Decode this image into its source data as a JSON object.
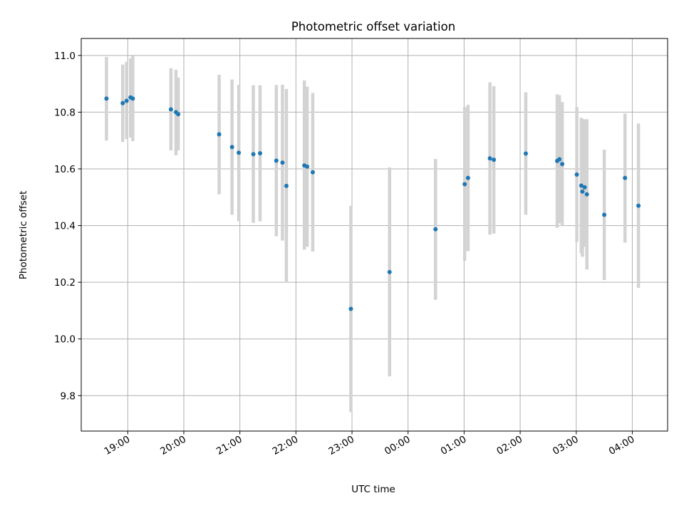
{
  "chart_data": {
    "type": "scatter",
    "title": "Photometric offset variation",
    "xlabel": "UTC time",
    "ylabel": "Photometric offset",
    "x_unit": "time of day (hours, continuing past midnight)",
    "xlim": [
      18.17,
      28.63
    ],
    "ylim": [
      9.675,
      11.06
    ],
    "x_ticks": [
      {
        "value": 19,
        "label": "19:00"
      },
      {
        "value": 20,
        "label": "20:00"
      },
      {
        "value": 21,
        "label": "21:00"
      },
      {
        "value": 22,
        "label": "22:00"
      },
      {
        "value": 23,
        "label": "23:00"
      },
      {
        "value": 24,
        "label": "00:00"
      },
      {
        "value": 25,
        "label": "01:00"
      },
      {
        "value": 26,
        "label": "02:00"
      },
      {
        "value": 27,
        "label": "03:00"
      },
      {
        "value": 28,
        "label": "04:00"
      }
    ],
    "y_ticks": [
      {
        "value": 9.8,
        "label": "9.8"
      },
      {
        "value": 10.0,
        "label": "10.0"
      },
      {
        "value": 10.2,
        "label": "10.2"
      },
      {
        "value": 10.4,
        "label": "10.4"
      },
      {
        "value": 10.6,
        "label": "10.6"
      },
      {
        "value": 10.8,
        "label": "10.8"
      },
      {
        "value": 11.0,
        "label": "11.0"
      }
    ],
    "grid": true,
    "marker_color": "#1f77b4",
    "errorbar_color": "#d3d3d3",
    "points": [
      {
        "x": 18.62,
        "y": 10.848,
        "ylo": 10.7,
        "yhi": 10.995
      },
      {
        "x": 18.91,
        "y": 10.832,
        "ylo": 10.695,
        "yhi": 10.968
      },
      {
        "x": 18.98,
        "y": 10.84,
        "ylo": 10.705,
        "yhi": 10.978
      },
      {
        "x": 19.05,
        "y": 10.852,
        "ylo": 10.71,
        "yhi": 10.99
      },
      {
        "x": 19.09,
        "y": 10.848,
        "ylo": 10.698,
        "yhi": 10.998
      },
      {
        "x": 19.77,
        "y": 10.81,
        "ylo": 10.665,
        "yhi": 10.955
      },
      {
        "x": 19.86,
        "y": 10.8,
        "ylo": 10.648,
        "yhi": 10.95
      },
      {
        "x": 19.9,
        "y": 10.793,
        "ylo": 10.665,
        "yhi": 10.922
      },
      {
        "x": 20.63,
        "y": 10.722,
        "ylo": 10.51,
        "yhi": 10.932
      },
      {
        "x": 20.86,
        "y": 10.677,
        "ylo": 10.438,
        "yhi": 10.915
      },
      {
        "x": 20.98,
        "y": 10.657,
        "ylo": 10.415,
        "yhi": 10.897
      },
      {
        "x": 21.24,
        "y": 10.652,
        "ylo": 10.41,
        "yhi": 10.895
      },
      {
        "x": 21.36,
        "y": 10.655,
        "ylo": 10.415,
        "yhi": 10.895
      },
      {
        "x": 21.65,
        "y": 10.629,
        "ylo": 10.362,
        "yhi": 10.896
      },
      {
        "x": 21.76,
        "y": 10.622,
        "ylo": 10.347,
        "yhi": 10.897
      },
      {
        "x": 21.83,
        "y": 10.54,
        "ylo": 10.198,
        "yhi": 10.882
      },
      {
        "x": 22.15,
        "y": 10.612,
        "ylo": 10.315,
        "yhi": 10.912
      },
      {
        "x": 22.2,
        "y": 10.608,
        "ylo": 10.325,
        "yhi": 10.89
      },
      {
        "x": 22.3,
        "y": 10.588,
        "ylo": 10.308,
        "yhi": 10.868
      },
      {
        "x": 22.98,
        "y": 10.106,
        "ylo": 9.742,
        "yhi": 10.47
      },
      {
        "x": 23.67,
        "y": 10.236,
        "ylo": 9.868,
        "yhi": 10.605
      },
      {
        "x": 24.49,
        "y": 10.387,
        "ylo": 10.138,
        "yhi": 10.635
      },
      {
        "x": 25.01,
        "y": 10.546,
        "ylo": 10.275,
        "yhi": 10.818
      },
      {
        "x": 25.07,
        "y": 10.568,
        "ylo": 10.31,
        "yhi": 10.826
      },
      {
        "x": 25.46,
        "y": 10.637,
        "ylo": 10.368,
        "yhi": 10.905
      },
      {
        "x": 25.53,
        "y": 10.632,
        "ylo": 10.372,
        "yhi": 10.892
      },
      {
        "x": 26.1,
        "y": 10.654,
        "ylo": 10.438,
        "yhi": 10.87
      },
      {
        "x": 26.66,
        "y": 10.628,
        "ylo": 10.392,
        "yhi": 10.863
      },
      {
        "x": 26.7,
        "y": 10.634,
        "ylo": 10.408,
        "yhi": 10.86
      },
      {
        "x": 26.75,
        "y": 10.617,
        "ylo": 10.398,
        "yhi": 10.836
      },
      {
        "x": 27.01,
        "y": 10.58,
        "ylo": 10.342,
        "yhi": 10.818
      },
      {
        "x": 27.09,
        "y": 10.541,
        "ylo": 10.302,
        "yhi": 10.78
      },
      {
        "x": 27.11,
        "y": 10.52,
        "ylo": 10.29,
        "yhi": 10.776
      },
      {
        "x": 27.15,
        "y": 10.535,
        "ylo": 10.325,
        "yhi": 10.775
      },
      {
        "x": 27.19,
        "y": 10.51,
        "ylo": 10.245,
        "yhi": 10.775
      },
      {
        "x": 27.5,
        "y": 10.438,
        "ylo": 10.208,
        "yhi": 10.668
      },
      {
        "x": 27.87,
        "y": 10.568,
        "ylo": 10.34,
        "yhi": 10.795
      },
      {
        "x": 28.11,
        "y": 10.47,
        "ylo": 10.18,
        "yhi": 10.76
      }
    ]
  }
}
